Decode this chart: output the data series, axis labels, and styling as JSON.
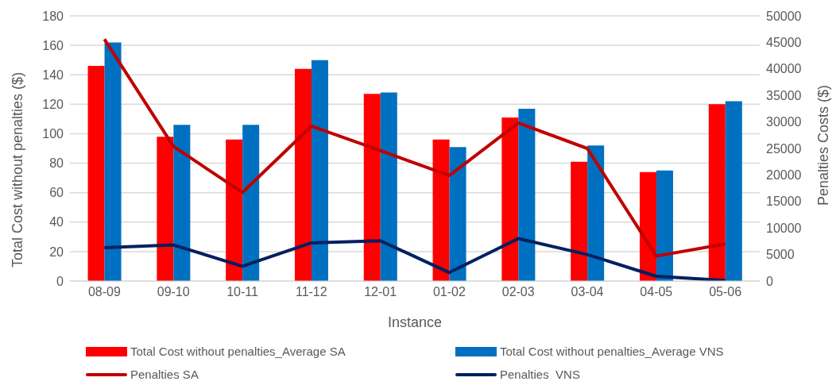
{
  "chart_data": {
    "type": "bar",
    "categories": [
      "08-09",
      "09-10",
      "10-11",
      "11-12",
      "12-01",
      "01-02",
      "02-03",
      "03-04",
      "04-05",
      "05-06"
    ],
    "xlabel": "Instance",
    "ylabel": "Total  Cost without penalties ($)",
    "y2label": "Penalties Costs ($)",
    "series": [
      {
        "name": "Total Cost without penalties_Average SA",
        "color": "#ff0000",
        "values": [
          146,
          98,
          96,
          144,
          127,
          96,
          111,
          81,
          74,
          120
        ]
      },
      {
        "name": "Total Cost without penalties_Average VNS",
        "color": "#0070c0",
        "values": [
          162,
          106,
          106,
          150,
          128,
          91,
          117,
          92,
          75,
          122
        ]
      },
      {
        "name": "Penalties SA",
        "type": "line",
        "axis": "y2",
        "color": "#c00000",
        "values": [
          45600,
          25400,
          16700,
          29200,
          24600,
          19900,
          29800,
          25000,
          4700,
          7000
        ]
      },
      {
        "name": "Penalties  VNS",
        "type": "line",
        "axis": "y2",
        "color": "#002060",
        "values": [
          6300,
          6800,
          2800,
          7200,
          7600,
          1600,
          8000,
          5000,
          900,
          100
        ]
      }
    ],
    "ylim": [
      0,
      180
    ],
    "yticks": [
      0,
      20,
      40,
      60,
      80,
      100,
      120,
      140,
      160,
      180
    ],
    "y2lim": [
      0,
      50000
    ],
    "y2ticks": [
      0,
      5000,
      10000,
      15000,
      20000,
      25000,
      30000,
      35000,
      40000,
      45000,
      50000
    ],
    "grid": "y",
    "legend": "bottom",
    "marker": "none",
    "line_style": "solid"
  }
}
